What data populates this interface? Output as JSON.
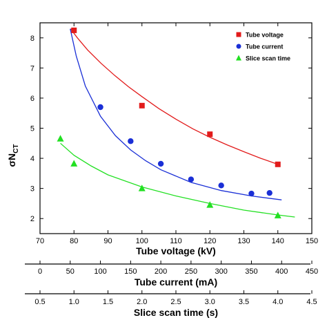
{
  "chart_data": {
    "type": "scatter",
    "ylabel": "σN",
    "ylabel_sub": "CT",
    "ylim": [
      1.5,
      8.5
    ],
    "y_ticks": [
      "2",
      "3",
      "4",
      "5",
      "6",
      "7",
      "8"
    ],
    "axes": [
      {
        "label": "Tube voltage (kV)",
        "range": [
          70,
          150
        ],
        "ticks": [
          "70",
          "80",
          "90",
          "100",
          "110",
          "120",
          "130",
          "140",
          "150"
        ]
      },
      {
        "label": "Tube current (mA)",
        "range": [
          0,
          450
        ],
        "ticks": [
          "0",
          "50",
          "100",
          "150",
          "200",
          "250",
          "300",
          "350",
          "400",
          "450"
        ]
      },
      {
        "label": "Slice scan time (s)",
        "range": [
          0.5,
          4.5
        ],
        "ticks": [
          "0.5",
          "1.0",
          "1.5",
          "2.0",
          "2.5",
          "3.0",
          "3.5",
          "4.0",
          "4.5"
        ]
      }
    ],
    "series": [
      {
        "name": "Tube voltage",
        "axis": 0,
        "marker": "square",
        "color": "#e21b1b",
        "x": [
          80,
          100,
          120,
          140
        ],
        "y": [
          8.25,
          5.75,
          4.8,
          3.8
        ],
        "fit": {
          "x": [
            79,
            81,
            84,
            88,
            92,
            96,
            100,
            105,
            110,
            115,
            120,
            125,
            130,
            135,
            140
          ],
          "y": [
            8.3,
            8.0,
            7.6,
            7.15,
            6.75,
            6.38,
            6.05,
            5.65,
            5.3,
            4.98,
            4.7,
            4.45,
            4.22,
            4.0,
            3.8
          ]
        }
      },
      {
        "name": "Tube current",
        "axis": 1,
        "marker": "circle",
        "color": "#1a2fd6",
        "x": [
          100,
          150,
          200,
          250,
          300,
          350,
          380
        ],
        "y": [
          5.7,
          4.57,
          3.82,
          3.3,
          3.1,
          2.83,
          2.85
        ],
        "fit": {
          "x": [
            50,
            60,
            75,
            100,
            125,
            150,
            175,
            200,
            250,
            300,
            350,
            400
          ],
          "y": [
            8.3,
            7.4,
            6.4,
            5.4,
            4.75,
            4.28,
            3.92,
            3.62,
            3.2,
            2.93,
            2.75,
            2.62
          ]
        }
      },
      {
        "name": "Slice scan time",
        "axis": 2,
        "marker": "triangle",
        "color": "#22e022",
        "x": [
          0.8,
          1.0,
          2.0,
          3.0,
          4.0
        ],
        "y": [
          4.65,
          3.82,
          3.0,
          2.45,
          2.1
        ],
        "fit": {
          "x": [
            0.8,
            1.0,
            1.25,
            1.5,
            2.0,
            2.5,
            3.0,
            3.5,
            4.0,
            4.25
          ],
          "y": [
            4.5,
            4.1,
            3.75,
            3.45,
            3.05,
            2.75,
            2.5,
            2.28,
            2.12,
            2.05
          ]
        }
      }
    ],
    "legend_position": "top-right",
    "grid": false
  }
}
